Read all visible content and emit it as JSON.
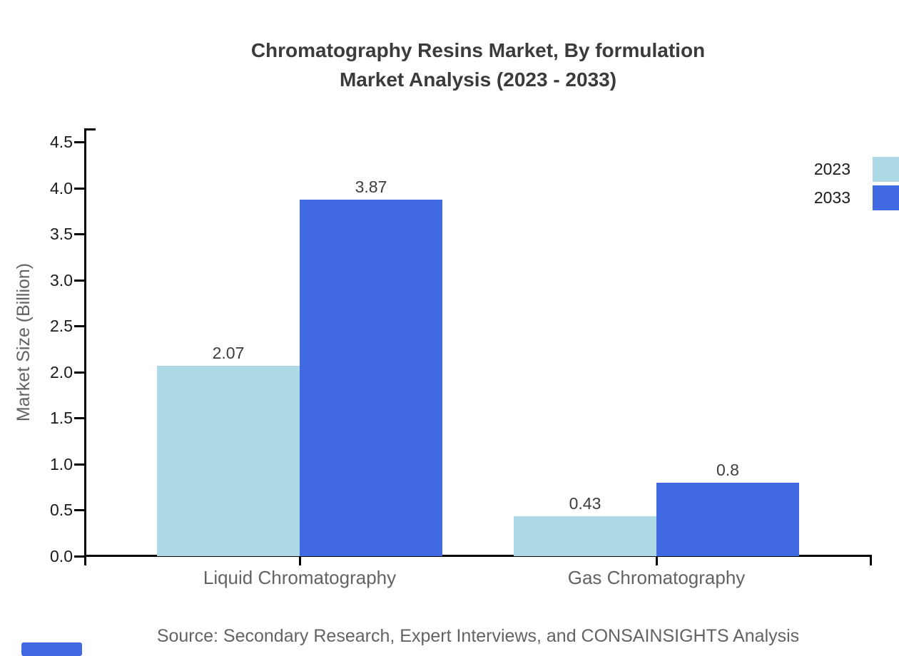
{
  "title": {
    "line1": "Chromatography Resins Market, By formulation",
    "line2": "Market Analysis (2023 - 2033)"
  },
  "source": "Source: Secondary Research, Expert Interviews, and CONSAINSIGHTS Analysis",
  "colors": {
    "series_2023": "#ADD8E6",
    "series_2033": "#4169E1",
    "axis": "#000000",
    "title_text": "#3b3b3b",
    "muted_text": "#636363",
    "tick_text": "#1a1a1a",
    "value_text": "#3d3d3d",
    "logo": "#4169E1",
    "background": "#ffffff"
  },
  "legend": {
    "entries": [
      {
        "label": "2023",
        "color": "#ADD8E6"
      },
      {
        "label": "2033",
        "color": "#4169E1"
      }
    ]
  },
  "chart_data": {
    "type": "bar",
    "title": "Chromatography Resins Market, By formulation Market Analysis (2023 - 2033)",
    "categories": [
      "Liquid Chromatography",
      "Gas Chromatography"
    ],
    "series": [
      {
        "name": "2023",
        "color": "#ADD8E6",
        "values": [
          2.07,
          0.43
        ],
        "labels": [
          "2.07",
          "0.43"
        ]
      },
      {
        "name": "2033",
        "color": "#4169E1",
        "values": [
          3.87,
          0.8
        ],
        "labels": [
          "3.87",
          "0.8"
        ]
      }
    ],
    "xlabel": "",
    "ylabel": "Market Size (Billion)",
    "ylim": [
      0,
      4.5
    ],
    "yticks": [
      "0.0",
      "0.5",
      "1.0",
      "1.5",
      "2.0",
      "2.5",
      "3.0",
      "3.5",
      "4.0",
      "4.5"
    ],
    "ytick_step": 0.5,
    "grid": false,
    "legend_position": "outside-right-top, swatches clipped at right edge",
    "bar_value_labels": true
  }
}
